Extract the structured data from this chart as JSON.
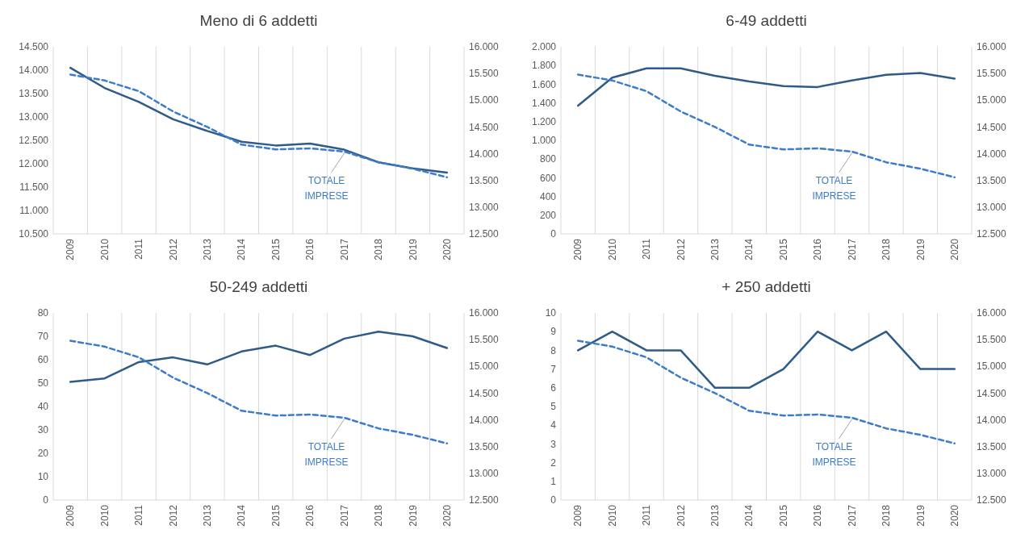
{
  "chart_data": [
    {
      "type": "line",
      "title": "Meno di 6 addetti",
      "categories": [
        "2009",
        "2010",
        "2011",
        "2012",
        "2013",
        "2014",
        "2015",
        "2016",
        "2017",
        "2018",
        "2019",
        "2020"
      ],
      "grid": "x",
      "ylim": [
        10500,
        14500
      ],
      "yticks": [
        {
          "value": 10500,
          "label": "10.500"
        },
        {
          "value": 11000,
          "label": "11.000"
        },
        {
          "value": 11500,
          "label": "11.500"
        },
        {
          "value": 12000,
          "label": "12.000"
        },
        {
          "value": 12500,
          "label": "12.500"
        },
        {
          "value": 13000,
          "label": "13.000"
        },
        {
          "value": 13500,
          "label": "13.500"
        },
        {
          "value": 14000,
          "label": "14.000"
        },
        {
          "value": 14500,
          "label": "14.500"
        }
      ],
      "y2lim": [
        12500,
        16000
      ],
      "y2ticks": [
        {
          "value": 12500,
          "label": "12.500"
        },
        {
          "value": 13000,
          "label": "13.000"
        },
        {
          "value": 13500,
          "label": "13.500"
        },
        {
          "value": 14000,
          "label": "14.000"
        },
        {
          "value": 14500,
          "label": "14.500"
        },
        {
          "value": 15000,
          "label": "15.000"
        },
        {
          "value": 15500,
          "label": "15.500"
        },
        {
          "value": 16000,
          "label": "16.000"
        }
      ],
      "series": [
        {
          "color": "#2f5b88",
          "values": [
            14050,
            13620,
            13320,
            12950,
            12700,
            12470,
            12390,
            12430,
            12300,
            12030,
            11900,
            11810
          ]
        },
        {
          "name": "TOTALE IMPRESE",
          "color": "#3d7cc9",
          "line_style": "dashed",
          "axis": "y2",
          "values": [
            15480,
            15370,
            15170,
            14790,
            14500,
            14170,
            14080,
            14100,
            14040,
            13840,
            13720,
            13560
          ]
        }
      ]
    },
    {
      "type": "line",
      "title": "6-49 addetti",
      "categories": [
        "2009",
        "2010",
        "2011",
        "2012",
        "2013",
        "2014",
        "2015",
        "2016",
        "2017",
        "2018",
        "2019",
        "2020"
      ],
      "grid": "x",
      "ylim": [
        0,
        2000
      ],
      "yticks": [
        0,
        200,
        400,
        600,
        800,
        {
          "value": 1000,
          "label": "1.000"
        },
        {
          "value": 1200,
          "label": "1.200"
        },
        {
          "value": 1400,
          "label": "1.400"
        },
        {
          "value": 1600,
          "label": "1.600"
        },
        {
          "value": 1800,
          "label": "1.800"
        },
        {
          "value": 2000,
          "label": "2.000"
        }
      ],
      "y2lim": [
        12500,
        16000
      ],
      "y2ticks": [
        {
          "value": 12500,
          "label": "12.500"
        },
        {
          "value": 13000,
          "label": "13.000"
        },
        {
          "value": 13500,
          "label": "13.500"
        },
        {
          "value": 14000,
          "label": "14.000"
        },
        {
          "value": 14500,
          "label": "14.500"
        },
        {
          "value": 15000,
          "label": "15.000"
        },
        {
          "value": 15500,
          "label": "15.500"
        },
        {
          "value": 16000,
          "label": "16.000"
        }
      ],
      "series": [
        {
          "color": "#2f5b88",
          "values": [
            1370,
            1670,
            1770,
            1770,
            1690,
            1630,
            1580,
            1570,
            1640,
            1700,
            1720,
            1660
          ]
        },
        {
          "name": "TOTALE IMPRESE",
          "color": "#3d7cc9",
          "line_style": "dashed",
          "axis": "y2",
          "values": [
            15480,
            15370,
            15170,
            14790,
            14500,
            14170,
            14080,
            14100,
            14040,
            13840,
            13720,
            13560
          ]
        }
      ]
    },
    {
      "type": "line",
      "title": "50-249 addetti",
      "categories": [
        "2009",
        "2010",
        "2011",
        "2012",
        "2013",
        "2014",
        "2015",
        "2016",
        "2017",
        "2018",
        "2019",
        "2020"
      ],
      "grid": "x",
      "ylim": [
        0,
        80
      ],
      "yticks": [
        0,
        10,
        20,
        30,
        40,
        50,
        60,
        70,
        80
      ],
      "y2lim": [
        12500,
        16000
      ],
      "y2ticks": [
        {
          "value": 12500,
          "label": "12.500"
        },
        {
          "value": 13000,
          "label": "13.000"
        },
        {
          "value": 13500,
          "label": "13.500"
        },
        {
          "value": 14000,
          "label": "14.000"
        },
        {
          "value": 14500,
          "label": "14.500"
        },
        {
          "value": 15000,
          "label": "15.000"
        },
        {
          "value": 15500,
          "label": "15.500"
        },
        {
          "value": 16000,
          "label": "16.000"
        }
      ],
      "series": [
        {
          "color": "#2f5b88",
          "values": [
            50.5,
            52,
            59,
            61,
            58,
            63.5,
            66,
            62,
            69,
            72,
            70,
            65
          ]
        },
        {
          "name": "TOTALE IMPRESE",
          "color": "#3d7cc9",
          "line_style": "dashed",
          "axis": "y2",
          "values": [
            15480,
            15370,
            15170,
            14790,
            14500,
            14170,
            14080,
            14100,
            14040,
            13840,
            13720,
            13560
          ]
        }
      ]
    },
    {
      "type": "line",
      "title": "+ 250 addetti",
      "categories": [
        "2009",
        "2010",
        "2011",
        "2012",
        "2013",
        "2014",
        "2015",
        "2016",
        "2017",
        "2018",
        "2019",
        "2020"
      ],
      "grid": "x",
      "ylim": [
        0,
        10
      ],
      "yticks": [
        0,
        1,
        2,
        3,
        4,
        5,
        6,
        7,
        8,
        9,
        10
      ],
      "y2lim": [
        12500,
        16000
      ],
      "y2ticks": [
        {
          "value": 12500,
          "label": "12.500"
        },
        {
          "value": 13000,
          "label": "13.000"
        },
        {
          "value": 13500,
          "label": "13.500"
        },
        {
          "value": 14000,
          "label": "14.000"
        },
        {
          "value": 14500,
          "label": "14.500"
        },
        {
          "value": 15000,
          "label": "15.000"
        },
        {
          "value": 15500,
          "label": "15.500"
        },
        {
          "value": 16000,
          "label": "16.000"
        }
      ],
      "series": [
        {
          "color": "#2f5b88",
          "values": [
            8,
            9,
            8,
            8,
            6,
            6,
            7,
            9,
            8,
            9,
            7,
            7
          ]
        },
        {
          "name": "TOTALE IMPRESE",
          "color": "#3d7cc9",
          "line_style": "dashed",
          "axis": "y2",
          "values": [
            15480,
            15370,
            15170,
            14790,
            14500,
            14170,
            14080,
            14100,
            14040,
            13840,
            13720,
            13560
          ]
        }
      ]
    }
  ]
}
